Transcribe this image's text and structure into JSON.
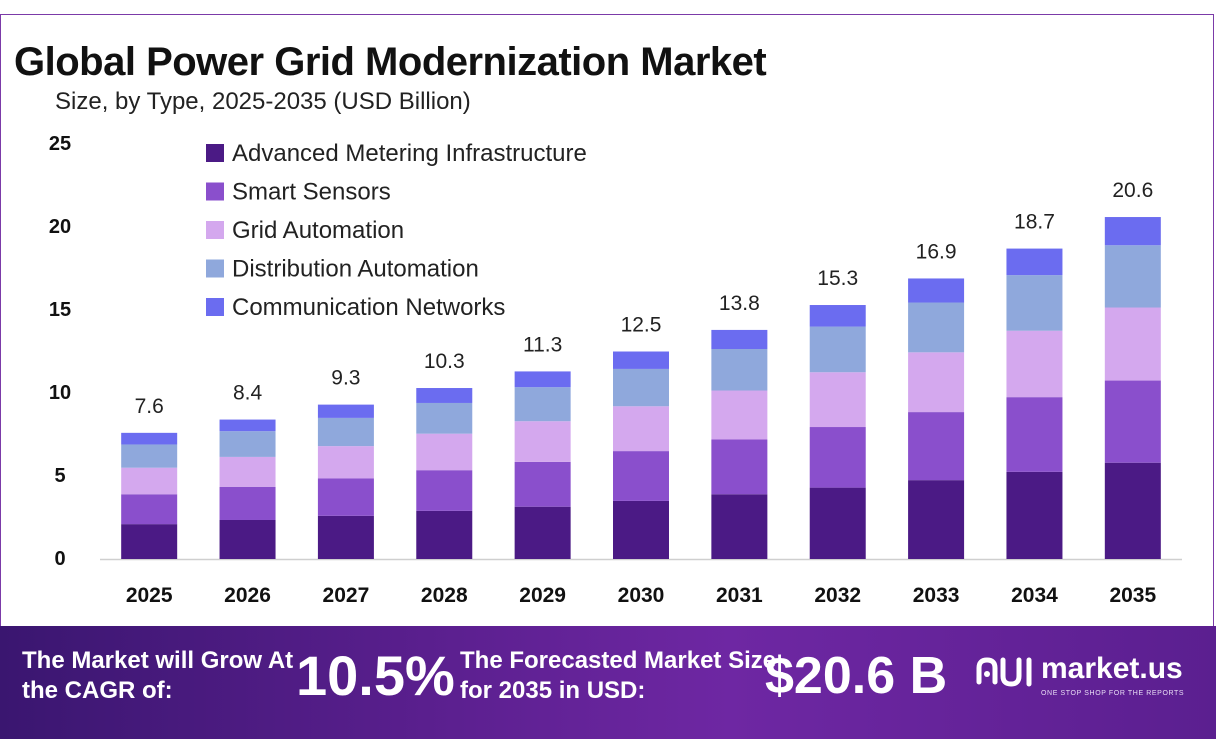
{
  "title": "Global Power Grid Modernization Market",
  "subtitle": "Size, by Type, 2025-2035 (USD Billion)",
  "colors": {
    "Advanced Metering Infrastructure": "#4b1a85",
    "Smart Sensors": "#8a4fcc",
    "Grid Automation": "#d4a8ee",
    "Distribution Automation": "#8fa8dc",
    "Communication Networks": "#6b6cf0"
  },
  "chart_data": {
    "type": "bar",
    "stacked": true,
    "categories": [
      "2025",
      "2026",
      "2027",
      "2028",
      "2029",
      "2030",
      "2031",
      "2032",
      "2033",
      "2034",
      "2035"
    ],
    "totals": [
      7.6,
      8.4,
      9.3,
      10.3,
      11.3,
      12.5,
      13.8,
      15.3,
      16.9,
      18.7,
      20.6
    ],
    "total_labels": [
      "7.6",
      "8.4",
      "9.3",
      "10.3",
      "11.3",
      "12.5",
      "13.8",
      "15.3",
      "16.9",
      "18.7",
      "20.6"
    ],
    "series": [
      {
        "name": "Advanced Metering Infrastructure",
        "values": [
          2.1,
          2.35,
          2.6,
          2.9,
          3.15,
          3.5,
          3.9,
          4.3,
          4.75,
          5.25,
          5.8
        ]
      },
      {
        "name": "Smart Sensors",
        "values": [
          1.8,
          2.0,
          2.25,
          2.45,
          2.7,
          3.0,
          3.3,
          3.65,
          4.1,
          4.5,
          4.95
        ]
      },
      {
        "name": "Grid Automation",
        "values": [
          1.6,
          1.8,
          1.95,
          2.2,
          2.45,
          2.7,
          2.95,
          3.3,
          3.6,
          4.0,
          4.4
        ]
      },
      {
        "name": "Distribution Automation",
        "values": [
          1.4,
          1.55,
          1.7,
          1.85,
          2.05,
          2.25,
          2.5,
          2.75,
          3.0,
          3.35,
          3.75
        ]
      },
      {
        "name": "Communication Networks",
        "values": [
          0.7,
          0.7,
          0.8,
          0.9,
          0.95,
          1.05,
          1.15,
          1.3,
          1.45,
          1.6,
          1.7
        ]
      }
    ],
    "ylim": [
      0,
      25
    ],
    "yticks": [
      "0",
      "5",
      "10",
      "15",
      "20",
      "25"
    ],
    "legend_position": "top-left",
    "grid": false
  },
  "footer": {
    "cagr_label": "The Market will Grow At the CAGR of:",
    "cagr_value": "10.5%",
    "forecast_label": "The Forecasted Market Size for 2035 in USD:",
    "forecast_value": "$20.6 B",
    "brand": "market.us",
    "tagline": "ONE STOP SHOP FOR THE REPORTS"
  }
}
